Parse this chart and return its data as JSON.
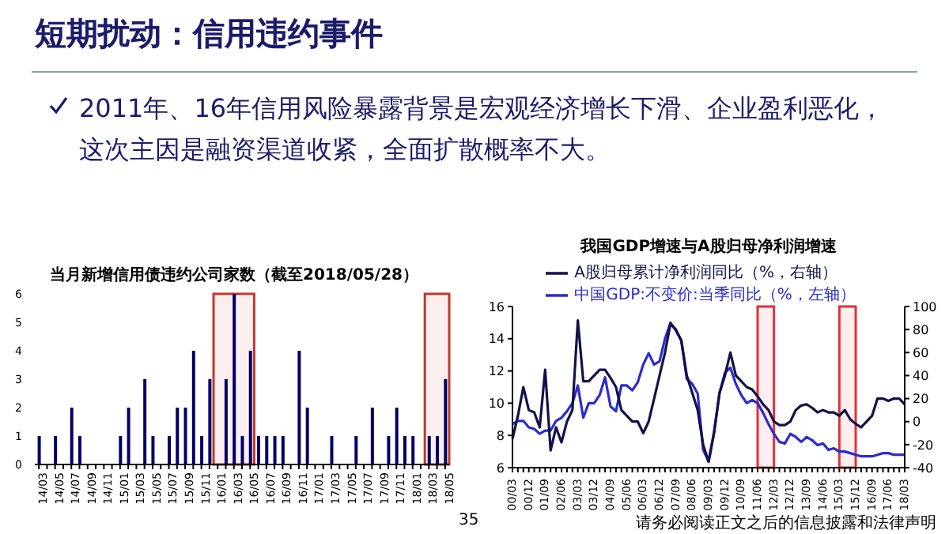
{
  "chart_data": [
    {
      "type": "bar",
      "title": "当月新增信用债违约公司家数（截至2018/05/28）",
      "annotations": [
        "短期扰动：信用违约事件",
        "2011年、16年信用风险暴露背景是宏观经济增长下滑、企业盈利恶化，这次主因是融资渠道收紧，全面扩散概率不大。",
        "35",
        "请务必阅读正文之后的信息披露和法律声明"
      ],
      "categories": [
        "14/03",
        null,
        "14/05",
        null,
        "14/07",
        null,
        "14/09",
        null,
        "14/11",
        null,
        "15/01",
        null,
        "15/03",
        null,
        "15/05",
        null,
        "15/07",
        null,
        "15/09",
        null,
        "15/11",
        null,
        "16/01",
        null,
        "16/03",
        null,
        "16/05",
        null,
        "16/07",
        null,
        "16/09",
        null,
        "16/11",
        null,
        "17/01",
        null,
        "17/03",
        null,
        "17/05",
        null,
        "17/07",
        null,
        "17/09",
        null,
        "17/11",
        null,
        "18/01",
        null,
        "18/03",
        null,
        "18/05"
      ],
      "values": [
        1,
        0,
        1,
        0,
        2,
        1,
        0,
        0,
        0,
        0,
        1,
        2,
        0,
        3,
        1,
        0,
        1,
        2,
        2,
        4,
        1,
        3,
        0,
        3,
        6,
        1,
        4,
        1,
        1,
        1,
        1,
        0,
        4,
        2,
        0,
        0,
        1,
        0,
        0,
        1,
        0,
        2,
        0,
        1,
        2,
        1,
        1,
        0,
        1,
        1,
        3
      ],
      "color": "#000066",
      "ylim": [
        0,
        6
      ],
      "yticks": [
        0,
        1,
        2,
        3,
        4,
        5,
        6
      ],
      "grid": false,
      "bands": [
        {
          "axis": "x",
          "from": "16/01",
          "to": "16/05",
          "color": "#c0392b"
        },
        {
          "axis": "x",
          "from": "18/03",
          "to": "18/05",
          "color": "#c0392b"
        }
      ]
    },
    {
      "type": "line",
      "title": "我国GDP增速与A股归母净利润增速",
      "categories": [
        "00/03",
        null,
        null,
        "00/12",
        null,
        null,
        "01/09",
        null,
        null,
        "02/06",
        null,
        null,
        "03/03",
        null,
        null,
        "03/12",
        null,
        null,
        "04/09",
        null,
        null,
        "05/06",
        null,
        null,
        "06/03",
        null,
        null,
        "06/12",
        null,
        null,
        "07/09",
        null,
        null,
        "08/06",
        null,
        null,
        "09/03",
        null,
        null,
        "09/12",
        null,
        null,
        "10/09",
        null,
        null,
        "11/06",
        null,
        null,
        "12/03",
        null,
        null,
        "12/12",
        null,
        null,
        "13/09",
        null,
        null,
        "14/06",
        null,
        null,
        "15/03",
        null,
        null,
        "15/12",
        null,
        null,
        "16/09",
        null,
        null,
        "17/06",
        null,
        null,
        "18/03"
      ],
      "series": [
        {
          "name": "中国GDP:不变价:当季同比（%，左轴）",
          "color": "#2b2bd1",
          "values": [
            8.7,
            8.9,
            8.9,
            8.5,
            8.4,
            8.1,
            8.3,
            8.3,
            8.9,
            9.1,
            9.5,
            10.0,
            11.1,
            9.1,
            10.0,
            10.0,
            10.5,
            11.6,
            9.8,
            9.5,
            11.1,
            11.1,
            10.8,
            11.3,
            12.4,
            13.1,
            12.4,
            12.6,
            14.0,
            15.0,
            14.5,
            13.9,
            11.5,
            11.2,
            10.6,
            7.1,
            6.4,
            8.2,
            10.6,
            11.9,
            12.2,
            11.2,
            10.5,
            10.0,
            10.2,
            10.0,
            9.4,
            8.7,
            8.1,
            7.6,
            7.5,
            8.1,
            7.9,
            7.6,
            7.9,
            7.7,
            7.4,
            7.5,
            7.1,
            7.2,
            7.0,
            7.0,
            6.9,
            6.8,
            6.7,
            6.7,
            6.7,
            6.8,
            6.9,
            6.9,
            6.8,
            6.8,
            6.8
          ]
        },
        {
          "name": "A股归母累计净利润同比（%，右轴）",
          "color": "#12124a",
          "axis": "y2",
          "values": [
            -15,
            5,
            30,
            10,
            8,
            -5,
            45,
            -25,
            -5,
            -18,
            0,
            10,
            88,
            35,
            35,
            40,
            45,
            45,
            38,
            30,
            10,
            5,
            0,
            0,
            -10,
            0,
            20,
            40,
            60,
            85,
            80,
            70,
            40,
            25,
            10,
            -20,
            -35,
            -10,
            25,
            40,
            60,
            40,
            35,
            30,
            28,
            22,
            15,
            10,
            0,
            -3,
            -3,
            0,
            10,
            14,
            15,
            12,
            8,
            10,
            8,
            8,
            5,
            10,
            2,
            -2,
            -5,
            0,
            5,
            20,
            20,
            18,
            20,
            20,
            15
          ]
        }
      ],
      "ylim": [
        6,
        16
      ],
      "yticks": [
        6,
        8,
        10,
        12,
        14,
        16
      ],
      "y2lim": [
        -40,
        100
      ],
      "y2ticks": [
        -40,
        -20,
        0,
        20,
        40,
        60,
        80,
        100
      ],
      "legend": "top",
      "grid": false,
      "marker": "none",
      "line_style": "solid",
      "bands": [
        {
          "axis": "x",
          "from": "11/06",
          "to": "12/03",
          "color": "#e0303a"
        },
        {
          "axis": "x",
          "from": "15/03",
          "to": "15/12",
          "color": "#e0303a"
        }
      ]
    }
  ]
}
